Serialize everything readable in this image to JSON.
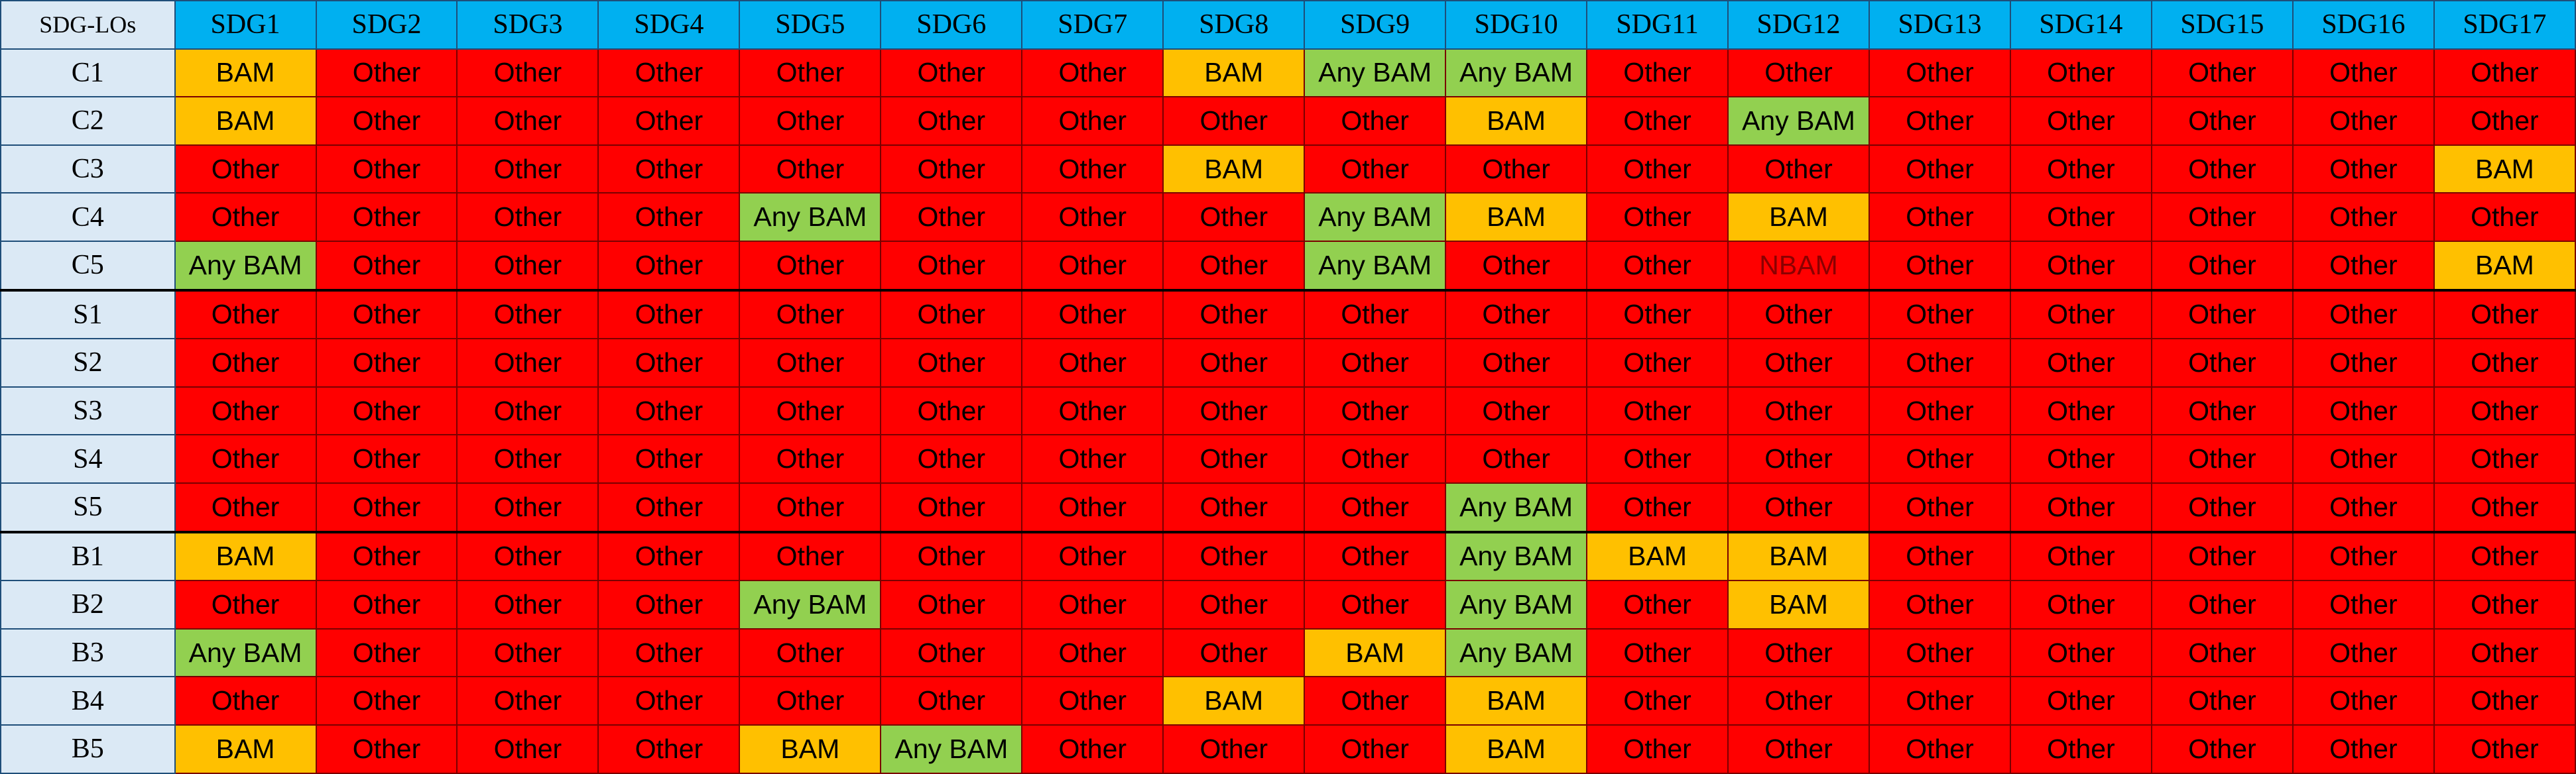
{
  "chart_data": {
    "type": "table",
    "corner_label": "SDG-LOs",
    "columns": [
      "SDG1",
      "SDG2",
      "SDG3",
      "SDG4",
      "SDG5",
      "SDG6",
      "SDG7",
      "SDG8",
      "SDG9",
      "SDG10",
      "SDG11",
      "SDG12",
      "SDG13",
      "SDG14",
      "SDG15",
      "SDG16",
      "SDG17"
    ],
    "row_groups": [
      {
        "rows": [
          "C1",
          "C2",
          "C3",
          "C4",
          "C5"
        ]
      },
      {
        "rows": [
          "S1",
          "S2",
          "S3",
          "S4",
          "S5"
        ]
      },
      {
        "rows": [
          "B1",
          "B2",
          "B3",
          "B4",
          "B5"
        ]
      }
    ],
    "rows": [
      {
        "label": "C1",
        "values": [
          "BAM",
          "Other",
          "Other",
          "Other",
          "Other",
          "Other",
          "Other",
          "BAM",
          "Any BAM",
          "Any BAM",
          "Other",
          "Other",
          "Other",
          "Other",
          "Other",
          "Other",
          "Other"
        ]
      },
      {
        "label": "C2",
        "values": [
          "BAM",
          "Other",
          "Other",
          "Other",
          "Other",
          "Other",
          "Other",
          "Other",
          "Other",
          "BAM",
          "Other",
          "Any BAM",
          "Other",
          "Other",
          "Other",
          "Other",
          "Other"
        ]
      },
      {
        "label": "C3",
        "values": [
          "Other",
          "Other",
          "Other",
          "Other",
          "Other",
          "Other",
          "Other",
          "BAM",
          "Other",
          "Other",
          "Other",
          "Other",
          "Other",
          "Other",
          "Other",
          "Other",
          "BAM"
        ]
      },
      {
        "label": "C4",
        "values": [
          "Other",
          "Other",
          "Other",
          "Other",
          "Any BAM",
          "Other",
          "Other",
          "Other",
          "Any BAM",
          "BAM",
          "Other",
          "BAM",
          "Other",
          "Other",
          "Other",
          "Other",
          "Other"
        ]
      },
      {
        "label": "C5",
        "values": [
          "Any BAM",
          "Other",
          "Other",
          "Other",
          "Other",
          "Other",
          "Other",
          "Other",
          "Any BAM",
          "Other",
          "Other",
          "NBAM",
          "Other",
          "Other",
          "Other",
          "Other",
          "BAM"
        ]
      },
      {
        "label": "S1",
        "values": [
          "Other",
          "Other",
          "Other",
          "Other",
          "Other",
          "Other",
          "Other",
          "Other",
          "Other",
          "Other",
          "Other",
          "Other",
          "Other",
          "Other",
          "Other",
          "Other",
          "Other"
        ]
      },
      {
        "label": "S2",
        "values": [
          "Other",
          "Other",
          "Other",
          "Other",
          "Other",
          "Other",
          "Other",
          "Other",
          "Other",
          "Other",
          "Other",
          "Other",
          "Other",
          "Other",
          "Other",
          "Other",
          "Other"
        ]
      },
      {
        "label": "S3",
        "values": [
          "Other",
          "Other",
          "Other",
          "Other",
          "Other",
          "Other",
          "Other",
          "Other",
          "Other",
          "Other",
          "Other",
          "Other",
          "Other",
          "Other",
          "Other",
          "Other",
          "Other"
        ]
      },
      {
        "label": "S4",
        "values": [
          "Other",
          "Other",
          "Other",
          "Other",
          "Other",
          "Other",
          "Other",
          "Other",
          "Other",
          "Other",
          "Other",
          "Other",
          "Other",
          "Other",
          "Other",
          "Other",
          "Other"
        ]
      },
      {
        "label": "S5",
        "values": [
          "Other",
          "Other",
          "Other",
          "Other",
          "Other",
          "Other",
          "Other",
          "Other",
          "Other",
          "Any BAM",
          "Other",
          "Other",
          "Other",
          "Other",
          "Other",
          "Other",
          "Other"
        ]
      },
      {
        "label": "B1",
        "values": [
          "BAM",
          "Other",
          "Other",
          "Other",
          "Other",
          "Other",
          "Other",
          "Other",
          "Other",
          "Any BAM",
          "BAM",
          "BAM",
          "Other",
          "Other",
          "Other",
          "Other",
          "Other"
        ]
      },
      {
        "label": "B2",
        "values": [
          "Other",
          "Other",
          "Other",
          "Other",
          "Any BAM",
          "Other",
          "Other",
          "Other",
          "Other",
          "Any BAM",
          "Other",
          "BAM",
          "Other",
          "Other",
          "Other",
          "Other",
          "Other"
        ]
      },
      {
        "label": "B3",
        "values": [
          "Any BAM",
          "Other",
          "Other",
          "Other",
          "Other",
          "Other",
          "Other",
          "Other",
          "BAM",
          "Any BAM",
          "Other",
          "Other",
          "Other",
          "Other",
          "Other",
          "Other",
          "Other"
        ]
      },
      {
        "label": "B4",
        "values": [
          "Other",
          "Other",
          "Other",
          "Other",
          "Other",
          "Other",
          "Other",
          "BAM",
          "Other",
          "BAM",
          "Other",
          "Other",
          "Other",
          "Other",
          "Other",
          "Other",
          "Other"
        ]
      },
      {
        "label": "B5",
        "values": [
          "BAM",
          "Other",
          "Other",
          "Other",
          "BAM",
          "Any BAM",
          "Other",
          "Other",
          "Other",
          "BAM",
          "Other",
          "Other",
          "Other",
          "Other",
          "Other",
          "Other",
          "Other"
        ]
      }
    ],
    "category_colors": {
      "Any BAM": "#92d050",
      "BAM": "#ffc000",
      "Other": "#ff0000",
      "NBAM": "#ff0000"
    },
    "text_colors": {
      "Any BAM": "#000000",
      "BAM": "#000000",
      "Other": "#000000",
      "NBAM": "#8b0000"
    }
  }
}
